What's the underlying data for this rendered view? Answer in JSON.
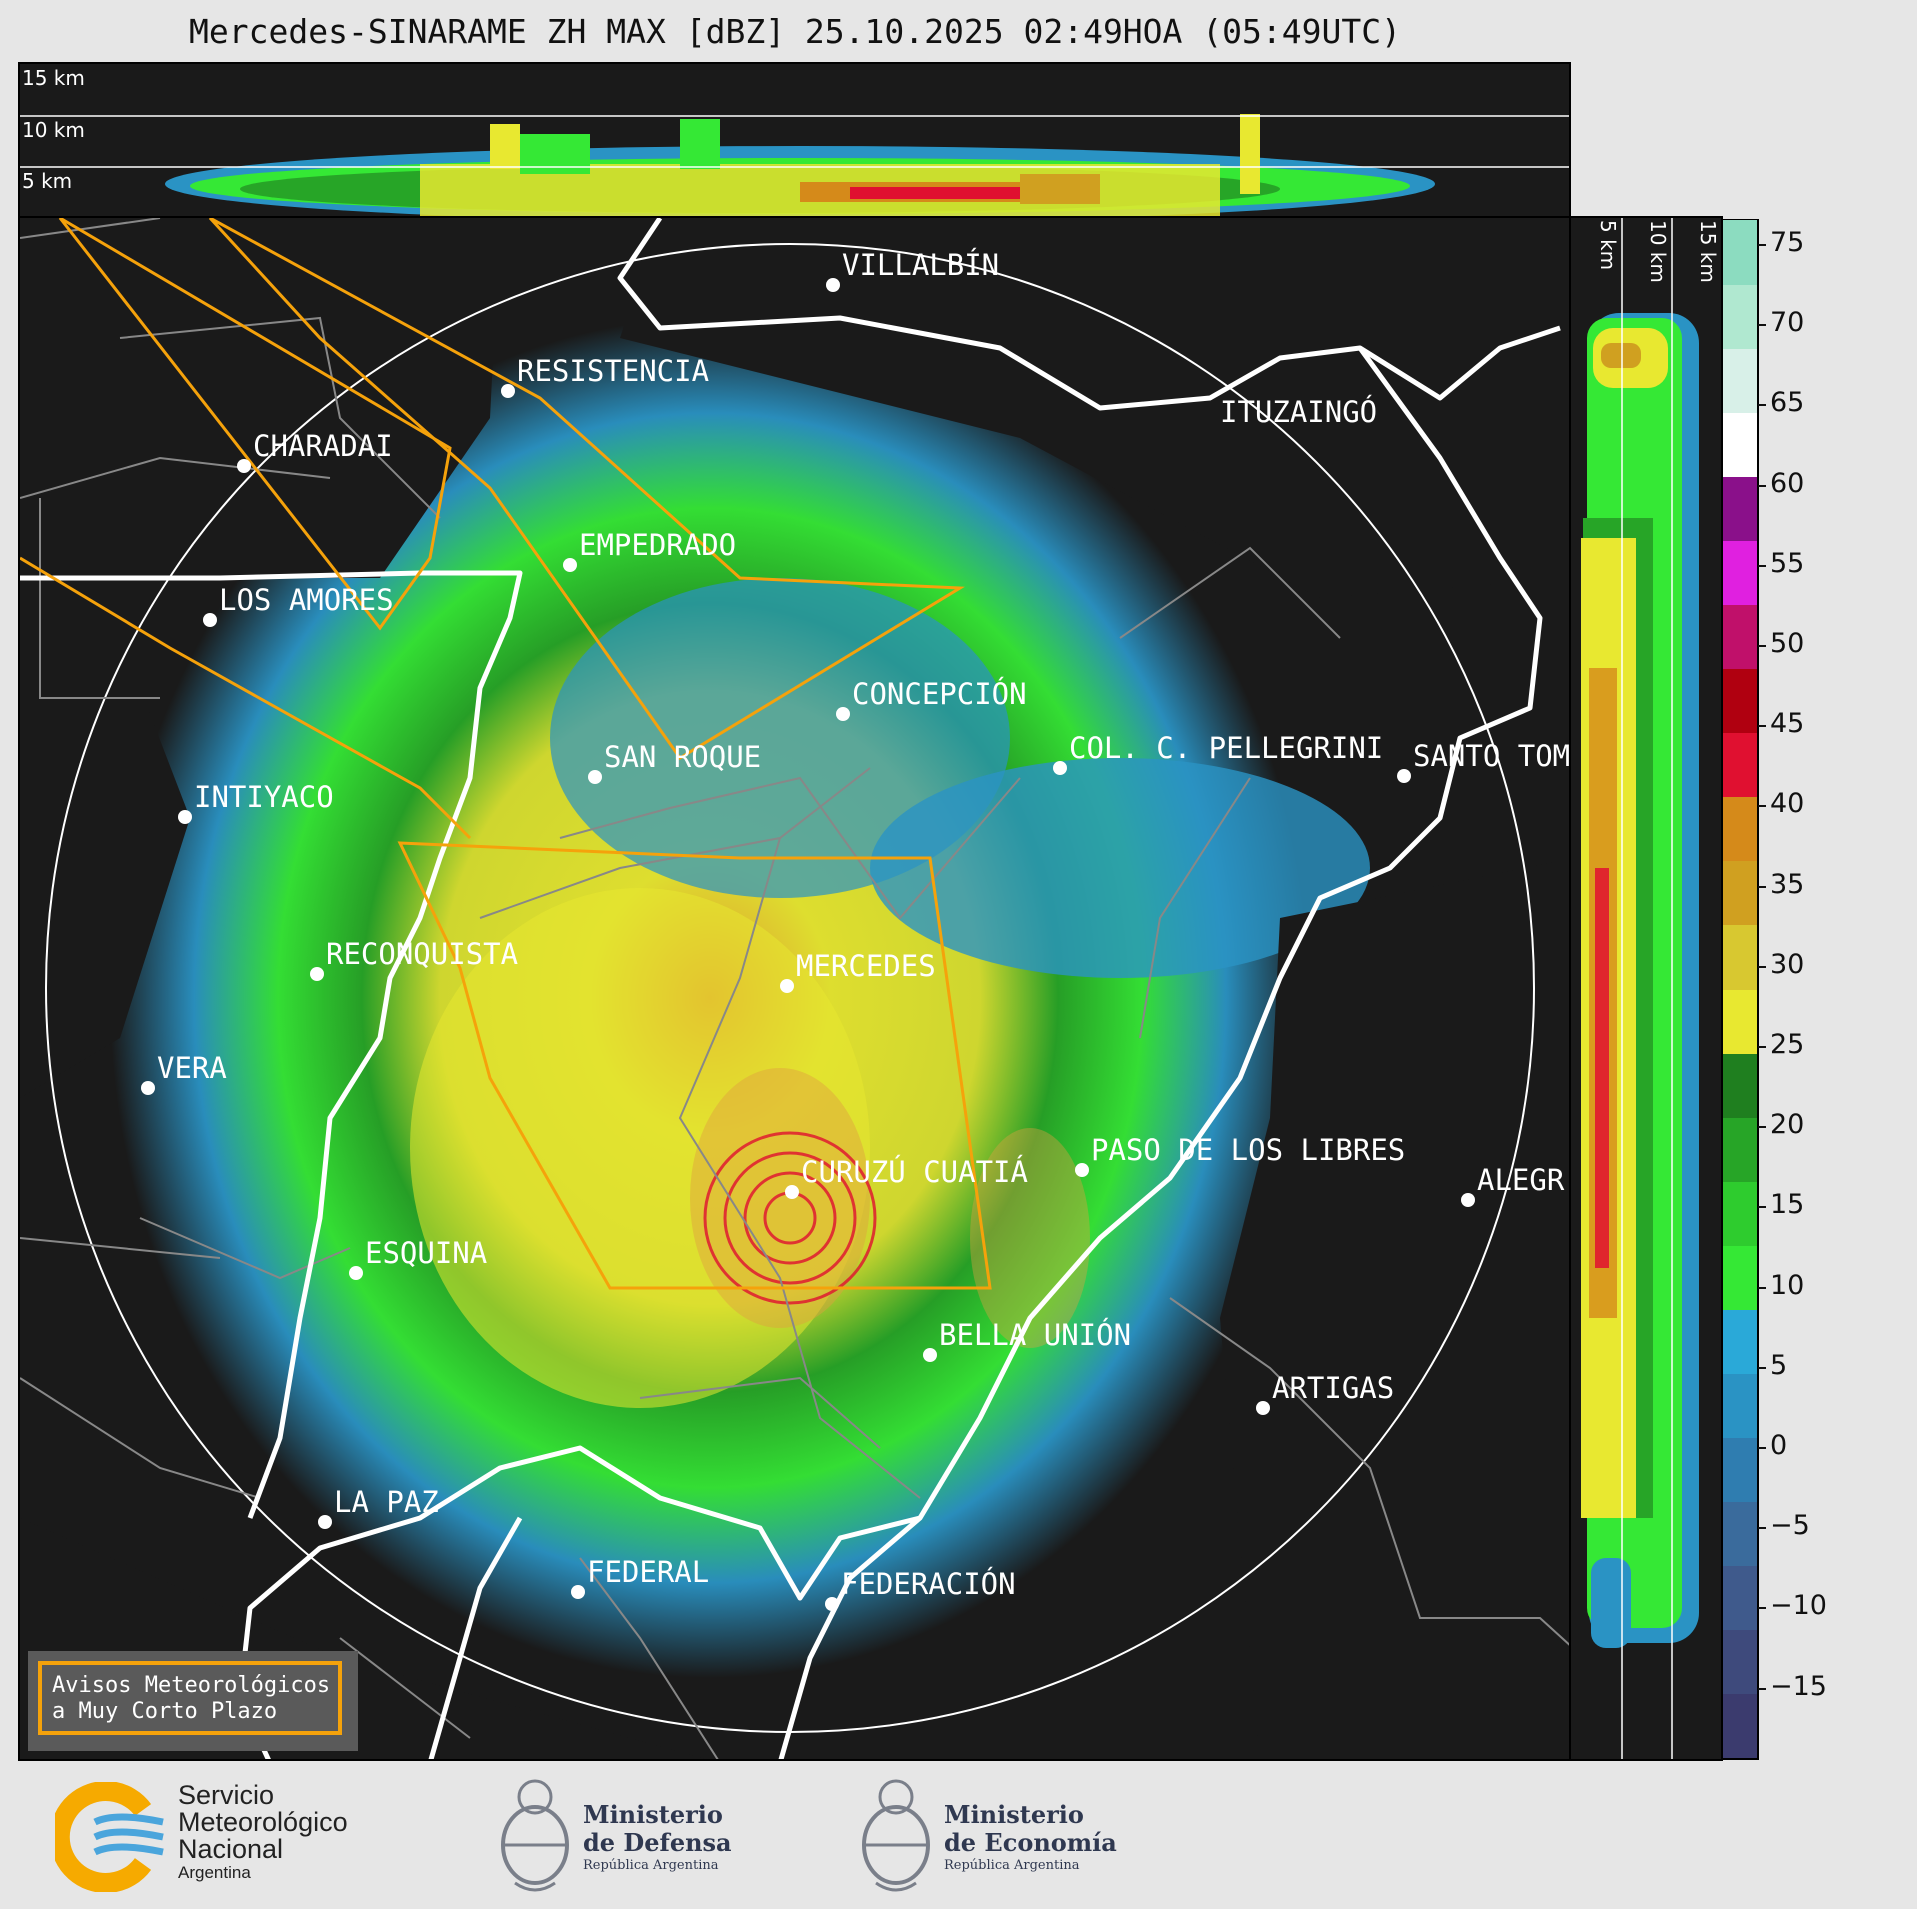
{
  "title": "Mercedes-SINARAME ZH MAX [dBZ] 25.10.2025 02:49HOA (05:49UTC)",
  "altitude_labels": [
    "15 km",
    "10 km",
    "5 km"
  ],
  "side_altitude_labels": [
    "5 km",
    "10 km",
    "15 km"
  ],
  "cities": [
    {
      "name": "VILLALBÍN"
    },
    {
      "name": "RESISTENCIA"
    },
    {
      "name": "CHARADAI"
    },
    {
      "name": "ITUZAINGÓ"
    },
    {
      "name": "EMPEDRADO"
    },
    {
      "name": "LOS AMORES"
    },
    {
      "name": "CONCEPCIÓN"
    },
    {
      "name": "SAN ROQUE"
    },
    {
      "name": "COL. C. PELLEGRINI"
    },
    {
      "name": "SANTO TOM"
    },
    {
      "name": "INTIYACO"
    },
    {
      "name": "RECONQUISTA"
    },
    {
      "name": "MERCEDES"
    },
    {
      "name": "VERA"
    },
    {
      "name": "CURUZÚ CUATIÁ"
    },
    {
      "name": "PASO DE LOS LIBRES"
    },
    {
      "name": "ALEGR"
    },
    {
      "name": "ESQUINA"
    },
    {
      "name": "BELLA UNIÓN"
    },
    {
      "name": "ARTIGAS"
    },
    {
      "name": "LA PAZ"
    },
    {
      "name": "FEDERAL"
    },
    {
      "name": "FEDERACIÓN"
    }
  ],
  "legend": {
    "line1": "Avisos Meteorológicos",
    "line2": "a Muy Corto Plazo",
    "border_color": "#f5a20b"
  },
  "colorbar": {
    "unit": "dBZ",
    "ticks": [
      "75",
      "70",
      "65",
      "60",
      "55",
      "50",
      "45",
      "40",
      "35",
      "30",
      "25",
      "20",
      "15",
      "10",
      "5",
      "0",
      "−5",
      "−10",
      "−15"
    ],
    "colors": [
      "#3b3b6e",
      "#3e4a7c",
      "#3f5a8c",
      "#3a6b9c",
      "#2f7db0",
      "#2a93c4",
      "#2aa9d8",
      "#35e835",
      "#2ecc2e",
      "#27a527",
      "#1f7f1f",
      "#e8e830",
      "#d8c830",
      "#d0a020",
      "#d58a1a",
      "#e01030",
      "#b00010",
      "#c0106a",
      "#e020e0",
      "#8a108a",
      "#ffffff",
      "#d8f0e8",
      "#b0e8d0",
      "#8cdcc0"
    ]
  },
  "logos": {
    "smn": {
      "line1": "Servicio",
      "line2": "Meteorológico",
      "line3": "Nacional",
      "line4": "Argentina"
    },
    "defensa": {
      "line1": "Ministerio",
      "line2": "de Defensa",
      "line3": "República Argentina"
    },
    "economia": {
      "line1": "Ministerio",
      "line2": "de Economía",
      "line3": "República Argentina"
    }
  }
}
